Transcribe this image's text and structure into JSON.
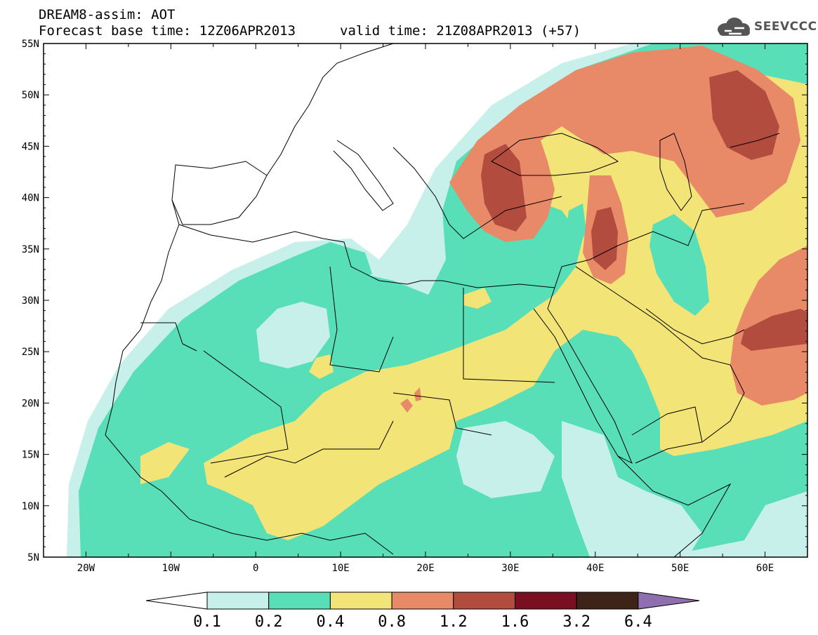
{
  "header": {
    "line1": "DREAM8-assim: AOT",
    "line2": "Forecast base time: 12Z06APR2013",
    "valid": "valid time: 21Z08APR2013 (+57)"
  },
  "logo": {
    "text": "SEEVCCC",
    "icon": "cloud-icon"
  },
  "map": {
    "lon_range": [
      -25,
      65
    ],
    "lat_range": [
      5,
      55
    ],
    "lon_ticks": [
      "20W",
      "10W",
      "0",
      "10E",
      "20E",
      "30E",
      "40E",
      "50E",
      "60E"
    ],
    "lat_ticks": [
      "5N",
      "10N",
      "15N",
      "20N",
      "25N",
      "30N",
      "35N",
      "40N",
      "45N",
      "50N",
      "55N"
    ],
    "field": "AOT"
  },
  "colorbar": {
    "labels": [
      "0.1",
      "0.2",
      "0.4",
      "0.8",
      "1.2",
      "1.6",
      "3.2",
      "6.4"
    ],
    "colors": [
      "#c8f0ea",
      "#58dfb7",
      "#f3e478",
      "#e88a68",
      "#b24c3e",
      "#7a0f22",
      "#3e2418",
      "#8f6fb0"
    ]
  }
}
